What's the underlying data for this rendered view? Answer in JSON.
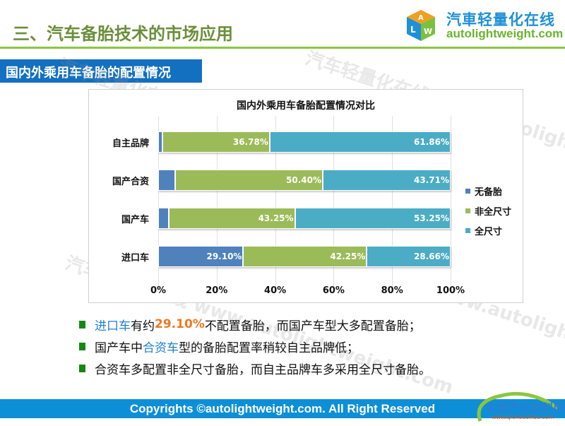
{
  "header": {
    "title": "三、汽车备胎技术的市场应用",
    "logo_cn": "汽車轻量化在线",
    "logo_en": "autolightweight.com"
  },
  "section_title": "国内外乘用车备胎的配置情况",
  "watermark": "汽车轻量化在线 www.autolightweight.com",
  "chart_data": {
    "type": "bar",
    "orientation": "horizontal-stacked-100",
    "title": "国内外乘用车备胎配置情况对比",
    "categories": [
      "自主品牌",
      "国产合资",
      "国产车",
      "进口车"
    ],
    "series": [
      {
        "name": "无备胎",
        "color": "#4f81bd",
        "values": [
          1.36,
          5.89,
          3.51,
          29.1
        ],
        "labels": [
          "1.36%",
          "5.89%",
          "3.51%",
          "29.10%"
        ]
      },
      {
        "name": "非全尺寸",
        "color": "#9bbb59",
        "values": [
          36.78,
          50.4,
          43.25,
          42.25
        ],
        "labels": [
          "36.78%",
          "50.40%",
          "43.25%",
          "42.25%"
        ]
      },
      {
        "name": "全尺寸",
        "color": "#4bacc6",
        "values": [
          61.86,
          43.71,
          53.25,
          28.66
        ],
        "labels": [
          "61.86%",
          "43.71%",
          "53.25%",
          "28.66%"
        ]
      }
    ],
    "xticks": [
      "0%",
      "20%",
      "40%",
      "60%",
      "80%",
      "100%"
    ],
    "xlim": [
      0,
      100
    ],
    "grid": true,
    "legend": "right"
  },
  "bullets": [
    {
      "parts": [
        {
          "t": "进口车",
          "c": "blue"
        },
        {
          "t": "有约",
          "c": ""
        },
        {
          "t": "29.10%",
          "c": "orange"
        },
        {
          "t": "不配置备胎，而国产车型大多配置备胎；",
          "c": ""
        }
      ]
    },
    {
      "parts": [
        {
          "t": "国产车中",
          "c": ""
        },
        {
          "t": "合资车",
          "c": "blue"
        },
        {
          "t": "型的备胎配置率稍较自主品牌低；",
          "c": ""
        }
      ]
    },
    {
      "parts": [
        {
          "t": "合资车多配置非全尺寸备胎，而自主品牌车多采用全尺寸备胎。",
          "c": ""
        }
      ]
    }
  ],
  "footer": {
    "copyright": "Copyrights ©autolightweight.com. All Right Reserved",
    "logo_cn": "中国汽车材料网",
    "logo_en": "www.qichecailiao.com"
  }
}
